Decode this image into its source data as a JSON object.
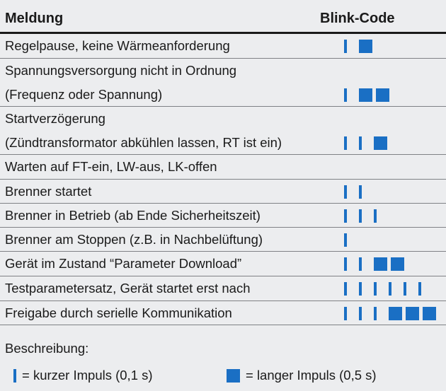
{
  "header": {
    "col_message": "Meldung",
    "col_code": "Blink-Code"
  },
  "rows": [
    {
      "lines": [
        "Regelpause, keine Wärmeanforderung"
      ],
      "code": [
        "S",
        "L"
      ]
    },
    {
      "lines": [
        "Spannungsversorgung nicht in Ordnung",
        "(Frequenz oder Spannung)"
      ],
      "code": [
        "S",
        "L",
        "L"
      ]
    },
    {
      "lines": [
        "Startverzögerung",
        "(Zündtransformator abkühlen lassen, RT ist ein)"
      ],
      "code": [
        "S",
        "S",
        "L"
      ]
    },
    {
      "lines": [
        "Warten auf FT-ein, LW-aus, LK-offen"
      ],
      "code": []
    },
    {
      "lines": [
        "Brenner startet"
      ],
      "code": [
        "S",
        "S"
      ]
    },
    {
      "lines": [
        "Brenner  in Betrieb (ab Ende Sicherheitszeit)"
      ],
      "code": [
        "S",
        "S",
        "S"
      ]
    },
    {
      "lines": [
        "Brenner am Stoppen (z.B. in Nachbelüftung)"
      ],
      "code": [
        "S"
      ]
    },
    {
      "lines": [
        "Gerät im Zustand “Parameter Download”"
      ],
      "code": [
        "S",
        "S",
        "L",
        "L"
      ]
    },
    {
      "lines": [
        "Testparametersatz, Gerät startet erst nach"
      ],
      "code": [
        "S",
        "S",
        "S",
        "S",
        "S",
        "S"
      ]
    },
    {
      "lines": [
        "Freigabe durch serielle Kommunikation"
      ],
      "code": [
        "S",
        "S",
        "S",
        "L",
        "L",
        "L"
      ]
    }
  ],
  "description": {
    "label": "Beschreibung:",
    "short_text": "= kurzer Impuls (0,1 s)",
    "long_text": "= langer Impuls (0,5 s)"
  },
  "colors": {
    "pulse": "#1a6fc4",
    "background": "#ecedef"
  }
}
